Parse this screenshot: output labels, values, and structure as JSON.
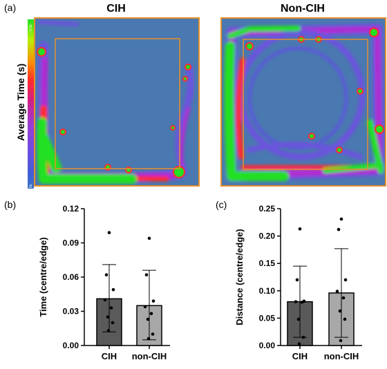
{
  "panel_labels": {
    "a": "(a)",
    "b": "(b)",
    "c": "(c)"
  },
  "heatmaps": {
    "colorbar_label": "Average Time (s)",
    "colorbar_max": "~1.0s",
    "colorbar_min": "0s",
    "maps": [
      {
        "title": "CIH"
      },
      {
        "title": "Non-CIH"
      }
    ],
    "colors": {
      "background": "#4a78b0",
      "border": "#e8902a",
      "hot": "#22e022",
      "warm": "#ff2b2b",
      "mid": "#b02ad0",
      "cool": "#5a5ad8"
    }
  },
  "chart_data": [
    {
      "type": "bar",
      "ylabel": "Time (centre/edge)",
      "categories": [
        "CIH",
        "non-CIH"
      ],
      "values": [
        0.041,
        0.035
      ],
      "error_upper": [
        0.071,
        0.066
      ],
      "error_lower": [
        0.012,
        0.005
      ],
      "ylim": [
        0,
        0.12
      ],
      "yticks": [
        "0.00",
        "0.03",
        "0.06",
        "0.09",
        "0.12"
      ],
      "bar_colors": [
        "#5a5a5a",
        "#a8a8a8"
      ],
      "points": [
        [
          0.099,
          0.062,
          0.049,
          0.04,
          0.033,
          0.025,
          0.02,
          0.013
        ],
        [
          0.094,
          0.062,
          0.039,
          0.034,
          0.028,
          0.023,
          0.01,
          0.006
        ]
      ]
    },
    {
      "type": "bar",
      "ylabel": "Distance (centre/edge)",
      "categories": [
        "CIH",
        "non-CIH"
      ],
      "values": [
        0.08,
        0.096
      ],
      "error_upper": [
        0.145,
        0.177
      ],
      "error_lower": [
        0.015,
        0.015
      ],
      "ylim": [
        0,
        0.25
      ],
      "yticks": [
        "0.00",
        "0.05",
        "0.10",
        "0.15",
        "0.20",
        "0.25"
      ],
      "bar_colors": [
        "#5a5a5a",
        "#a8a8a8"
      ],
      "points": [
        [
          0.213,
          0.12,
          0.081,
          0.08,
          0.079,
          0.048,
          0.015,
          0.003
        ],
        [
          0.231,
          0.212,
          0.12,
          0.099,
          0.087,
          0.063,
          0.048,
          0.009
        ]
      ]
    }
  ]
}
